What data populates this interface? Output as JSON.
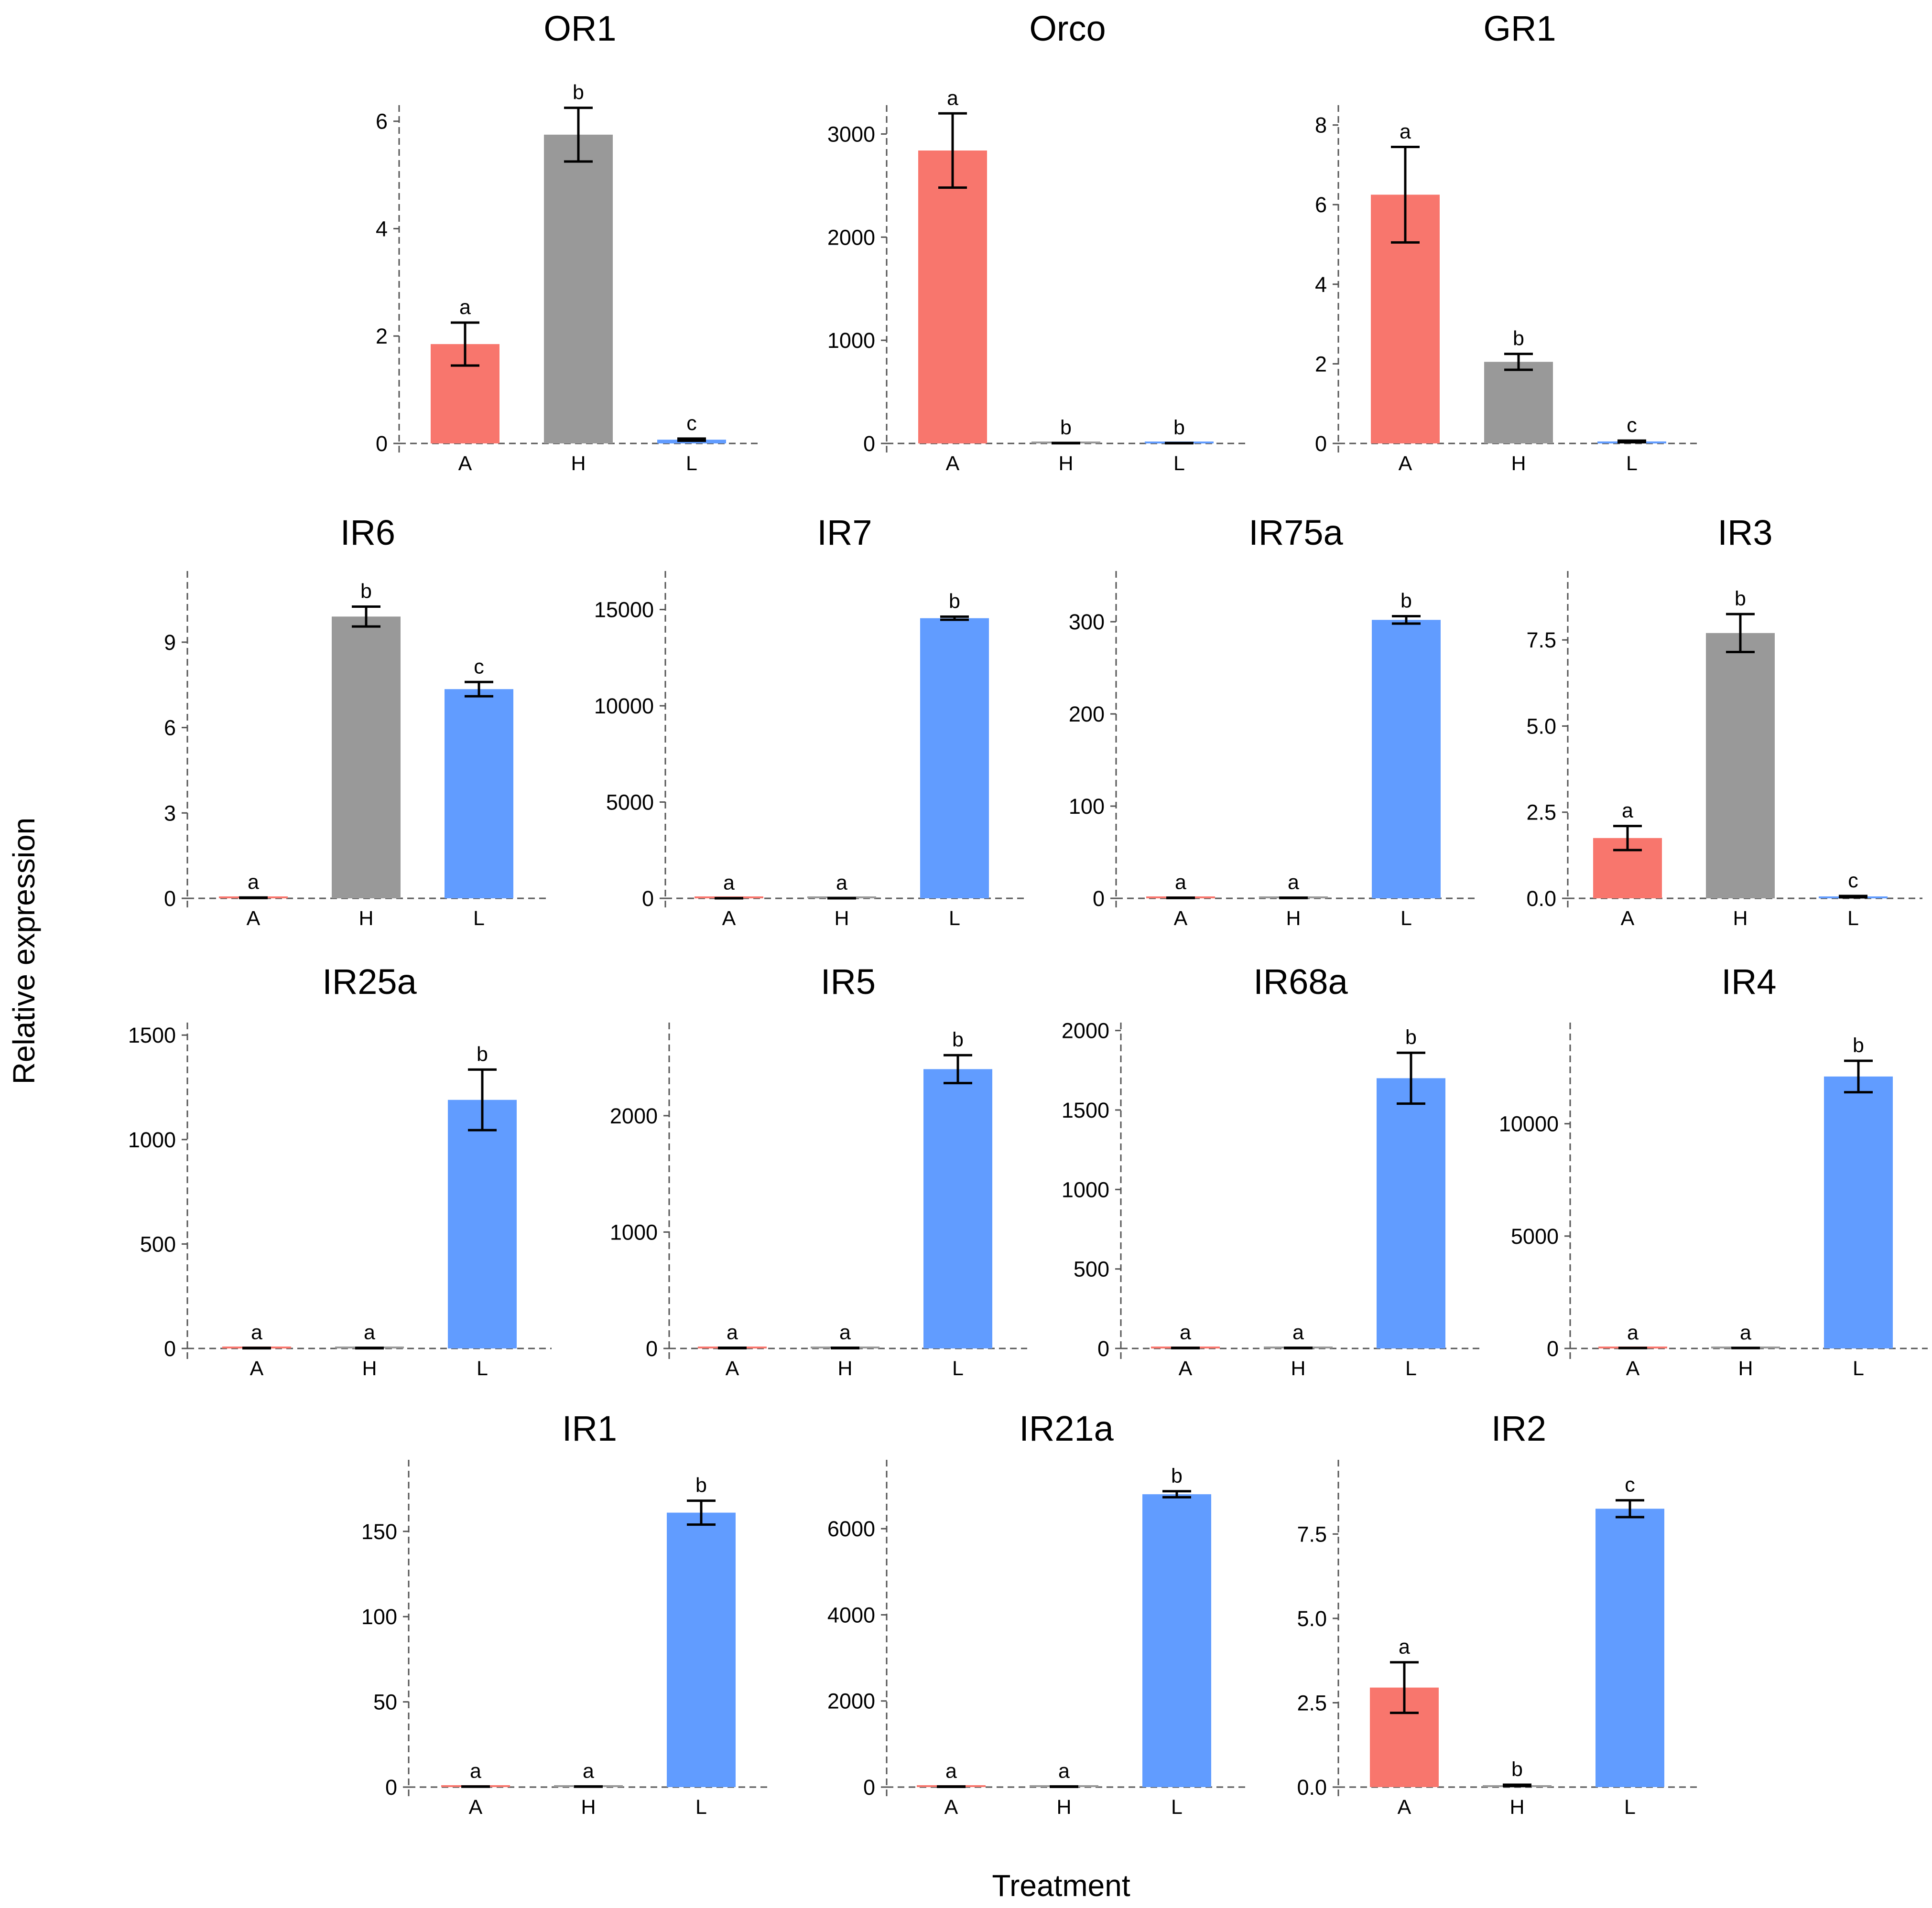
{
  "colors": {
    "A": "#F8766D",
    "H": "#999999",
    "L": "#619CFF"
  },
  "xlabel": "Treatment",
  "ylabel": "Relative expression",
  "chart_data": [
    {
      "type": "bar",
      "title": "OR1",
      "categories": [
        "A",
        "H",
        "L"
      ],
      "values": [
        1.85,
        5.75,
        0.07
      ],
      "errors": [
        0.4,
        0.5,
        0.02
      ],
      "significance": [
        "a",
        "b",
        "c"
      ],
      "yticks": [
        0,
        2,
        4,
        6
      ],
      "ylim": [
        0,
        6.3
      ]
    },
    {
      "type": "bar",
      "title": "Orco",
      "categories": [
        "A",
        "H",
        "L"
      ],
      "values": [
        2840,
        3,
        3
      ],
      "errors": [
        360,
        1,
        1
      ],
      "significance": [
        "a",
        "b",
        "b"
      ],
      "yticks": [
        0,
        1000,
        2000,
        3000
      ],
      "ylim": [
        0,
        3280
      ]
    },
    {
      "type": "bar",
      "title": "GR1",
      "categories": [
        "A",
        "H",
        "L"
      ],
      "values": [
        6.25,
        2.05,
        0.05
      ],
      "errors": [
        1.2,
        0.2,
        0.02
      ],
      "significance": [
        "a",
        "b",
        "c"
      ],
      "yticks": [
        0,
        2,
        4,
        6,
        8
      ],
      "ylim": [
        0,
        8.5
      ]
    },
    {
      "type": "bar",
      "title": "IR6",
      "categories": [
        "A",
        "H",
        "L"
      ],
      "values": [
        0.02,
        9.9,
        7.35
      ],
      "errors": [
        0.01,
        0.35,
        0.25
      ],
      "significance": [
        "a",
        "b",
        "c"
      ],
      "yticks": [
        0,
        3,
        6,
        9
      ],
      "ylim": [
        0,
        11.5
      ]
    },
    {
      "type": "bar",
      "title": "IR7",
      "categories": [
        "A",
        "H",
        "L"
      ],
      "values": [
        5,
        5,
        14550
      ],
      "errors": [
        2,
        2,
        80
      ],
      "significance": [
        "a",
        "a",
        "b"
      ],
      "yticks": [
        0,
        5000,
        10000,
        15000
      ],
      "ylim": [
        0,
        17000
      ]
    },
    {
      "type": "bar",
      "title": "IR75a",
      "categories": [
        "A",
        "H",
        "L"
      ],
      "values": [
        0.5,
        0.5,
        302
      ],
      "errors": [
        0.2,
        0.2,
        4
      ],
      "significance": [
        "a",
        "a",
        "b"
      ],
      "yticks": [
        0,
        100,
        200,
        300
      ],
      "ylim": [
        0,
        355
      ]
    },
    {
      "type": "bar",
      "title": "IR3",
      "categories": [
        "A",
        "H",
        "L"
      ],
      "values": [
        1.75,
        7.7,
        0.05
      ],
      "errors": [
        0.35,
        0.55,
        0.02
      ],
      "significance": [
        "a",
        "b",
        "c"
      ],
      "yticks": [
        0.0,
        2.5,
        5.0,
        7.5
      ],
      "ylim": [
        0,
        9.5
      ],
      "decimals": 1
    },
    {
      "type": "bar",
      "title": "IR25a",
      "categories": [
        "A",
        "H",
        "L"
      ],
      "values": [
        2,
        2,
        1190
      ],
      "errors": [
        1,
        1,
        145
      ],
      "significance": [
        "a",
        "a",
        "b"
      ],
      "yticks": [
        0,
        500,
        1000,
        1500
      ],
      "ylim": [
        0,
        1560
      ]
    },
    {
      "type": "bar",
      "title": "IR5",
      "categories": [
        "A",
        "H",
        "L"
      ],
      "values": [
        4,
        4,
        2400
      ],
      "errors": [
        2,
        2,
        120
      ],
      "significance": [
        "a",
        "a",
        "b"
      ],
      "yticks": [
        0,
        1000,
        2000
      ],
      "ylim": [
        0,
        2800
      ]
    },
    {
      "type": "bar",
      "title": "IR68a",
      "categories": [
        "A",
        "H",
        "L"
      ],
      "values": [
        3,
        3,
        1700
      ],
      "errors": [
        1,
        1,
        160
      ],
      "significance": [
        "a",
        "a",
        "b"
      ],
      "yticks": [
        0,
        500,
        1000,
        1500,
        2000
      ],
      "ylim": [
        0,
        2050
      ]
    },
    {
      "type": "bar",
      "title": "IR4",
      "categories": [
        "A",
        "H",
        "L"
      ],
      "values": [
        20,
        20,
        12100
      ],
      "errors": [
        5,
        5,
        700
      ],
      "significance": [
        "a",
        "a",
        "b"
      ],
      "yticks": [
        0,
        5000,
        10000
      ],
      "ylim": [
        0,
        14500
      ]
    },
    {
      "type": "bar",
      "title": "IR1",
      "categories": [
        "A",
        "H",
        "L"
      ],
      "values": [
        0.3,
        0.3,
        161
      ],
      "errors": [
        0.1,
        0.1,
        7
      ],
      "significance": [
        "a",
        "a",
        "b"
      ],
      "yticks": [
        0,
        50,
        100,
        150
      ],
      "ylim": [
        0,
        192
      ]
    },
    {
      "type": "bar",
      "title": "IR21a",
      "categories": [
        "A",
        "H",
        "L"
      ],
      "values": [
        10,
        10,
        6800
      ],
      "errors": [
        5,
        5,
        70
      ],
      "significance": [
        "a",
        "a",
        "b"
      ],
      "yticks": [
        0,
        2000,
        4000,
        6000
      ],
      "ylim": [
        0,
        7600
      ]
    },
    {
      "type": "bar",
      "title": "IR2",
      "categories": [
        "A",
        "H",
        "L"
      ],
      "values": [
        2.95,
        0.05,
        8.25
      ],
      "errors": [
        0.75,
        0.02,
        0.25
      ],
      "significance": [
        "a",
        "b",
        "c"
      ],
      "yticks": [
        0.0,
        2.5,
        5.0,
        7.5
      ],
      "ylim": [
        0,
        9.7
      ],
      "decimals": 1
    }
  ]
}
